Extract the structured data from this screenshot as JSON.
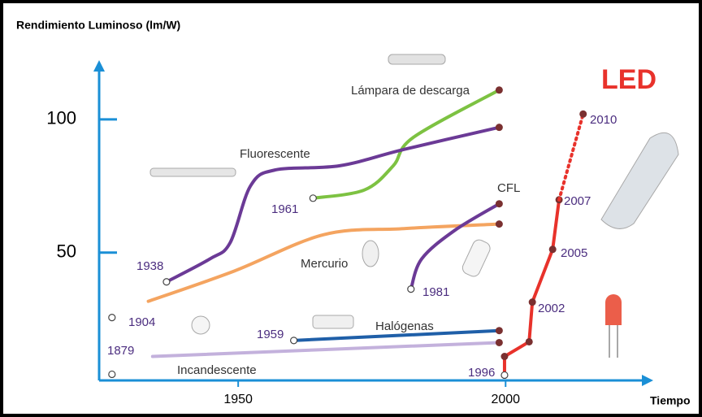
{
  "chart_data": {
    "type": "line",
    "title": "Rendimiento Luminoso (lm/W)",
    "x_label": "Tiempo",
    "headline": "LED",
    "xlim": [
      1924,
      2027
    ],
    "ylim": [
      2,
      121
    ],
    "xticks": [
      1950,
      2000
    ],
    "yticks": [
      50,
      100
    ],
    "series": [
      {
        "name": "Lámpara de descarga",
        "color": "#7dc242",
        "curve": "smooth",
        "open_start": true,
        "markers": "end",
        "x": [
          1964,
          1973.6,
          1979,
          1982.8,
          1998.8
        ],
        "values": [
          70.4,
          73.5,
          82.6,
          93.3,
          111
        ]
      },
      {
        "name": "Fluorescente",
        "color": "#6b3a96",
        "curve": "smooth",
        "open_start": true,
        "markers": "end",
        "x": [
          1936.6,
          1944.7,
          1948.5,
          1952.3,
          1956.9,
          1969,
          1981,
          1998.8
        ],
        "values": [
          39,
          47.6,
          53.7,
          75,
          81,
          82.6,
          88.7,
          97
        ]
      },
      {
        "name": "Mercurio",
        "color": "#f4a460",
        "curve": "smooth",
        "open_start": false,
        "markers": "end",
        "x": [
          1933.2,
          1949.2,
          1966,
          1981,
          1998.8
        ],
        "values": [
          31.7,
          43,
          56.7,
          59,
          60.7
        ]
      },
      {
        "name": "CFL",
        "color": "#6b3a96",
        "curve": "smooth",
        "open_start": true,
        "markers": "end",
        "x": [
          1982.3,
          1984.3,
          1990.4,
          1998.8
        ],
        "values": [
          36.3,
          47.6,
          58.2,
          68.3
        ]
      },
      {
        "name": "Halógenas",
        "color": "#1f5fa8",
        "curve": "smooth",
        "open_start": true,
        "markers": "end",
        "x": [
          1960.4,
          1998.8
        ],
        "values": [
          17,
          20.7
        ]
      },
      {
        "name": "Incandescente",
        "color": "#c3b1dc",
        "curve": "smooth",
        "open_start": false,
        "markers": "end",
        "x": [
          1934,
          1998.8
        ],
        "values": [
          11,
          16.2
        ]
      },
      {
        "color": "#e8322b",
        "curve": "straight",
        "open_start": true,
        "markers": "all",
        "x": [
          1999.8,
          1999.8,
          2004.4,
          2005,
          2008.8,
          2010
        ],
        "values": [
          4,
          11,
          16.5,
          31.4,
          51.2,
          69.8
        ]
      },
      {
        "color": "#e8322b",
        "curve": "straight",
        "style": "dotted",
        "open_start": false,
        "markers": "end",
        "x": [
          2010,
          2014.5
        ],
        "values": [
          69.8,
          102
        ]
      },
      {
        "color": "#444",
        "curve": "straight",
        "open_start": true,
        "markers": "none",
        "x": [
          1926.4
        ],
        "values": [
          25.6
        ]
      },
      {
        "color": "#444",
        "curve": "straight",
        "open_start": true,
        "markers": "none",
        "x": [
          1926.4
        ],
        "values": [
          4.3
        ]
      }
    ],
    "annotations": [
      "1938",
      "1961",
      "1981",
      "1959",
      "1904",
      "1879",
      "1996",
      "2002",
      "2005",
      "2007",
      "2010"
    ]
  }
}
